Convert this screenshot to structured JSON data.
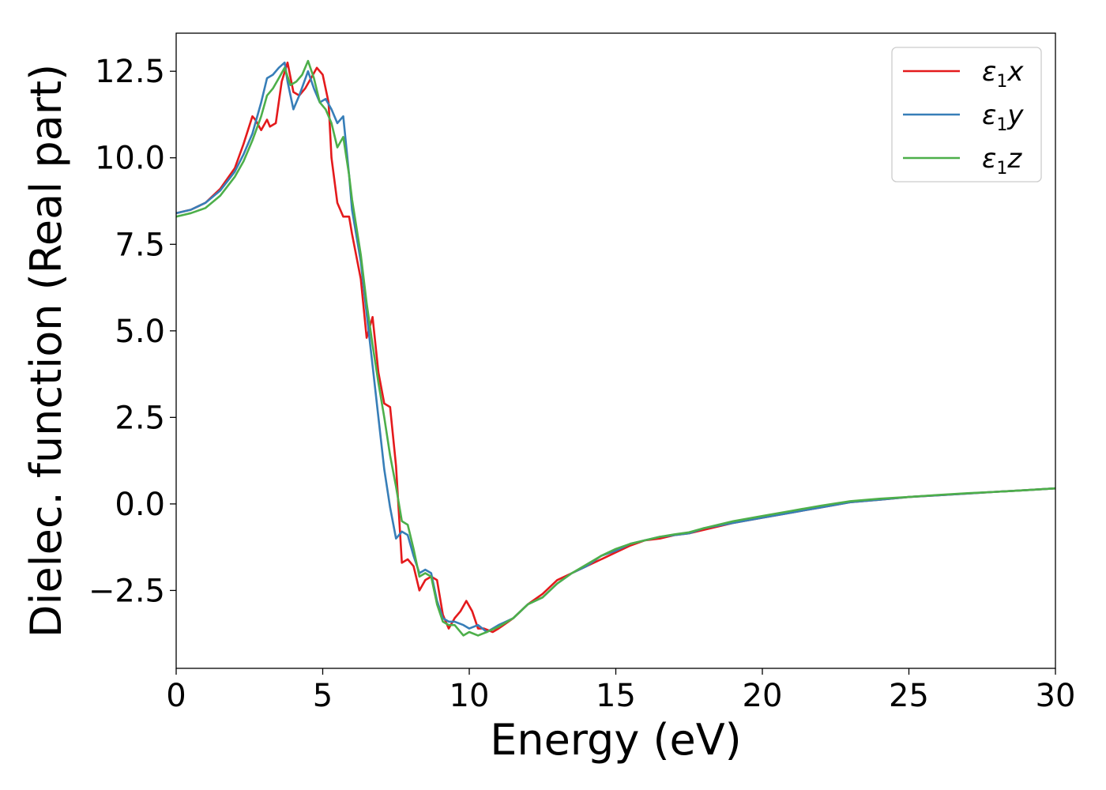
{
  "chart_data": {
    "type": "line",
    "xlabel": "Energy (eV)",
    "ylabel": "Dielec. function (Real part)",
    "xlim": [
      0,
      30
    ],
    "ylim": [
      -4.75,
      13.6
    ],
    "xticks": [
      0,
      5,
      10,
      15,
      20,
      25,
      30
    ],
    "xtick_labels": [
      "0",
      "5",
      "10",
      "15",
      "20",
      "25",
      "30"
    ],
    "yticks": [
      -2.5,
      0.0,
      2.5,
      5.0,
      7.5,
      10.0,
      12.5
    ],
    "ytick_labels": [
      "−2.5",
      "0.0",
      "2.5",
      "5.0",
      "7.5",
      "10.0",
      "12.5"
    ],
    "grid": false,
    "legend_position": "top-right",
    "series": [
      {
        "name": "ε₁x",
        "legend_main": "ε",
        "legend_sub": "1",
        "legend_tail": "x",
        "color": "#e41a1c",
        "x": [
          0,
          0.5,
          1.0,
          1.5,
          2.0,
          2.3,
          2.6,
          2.7,
          2.9,
          3.1,
          3.2,
          3.4,
          3.6,
          3.8,
          4.0,
          4.2,
          4.4,
          4.6,
          4.8,
          5.0,
          5.2,
          5.3,
          5.5,
          5.7,
          5.9,
          6.0,
          6.3,
          6.5,
          6.7,
          6.9,
          7.1,
          7.3,
          7.5,
          7.7,
          7.9,
          8.1,
          8.3,
          8.5,
          8.7,
          8.9,
          9.1,
          9.3,
          9.5,
          9.7,
          9.9,
          10.1,
          10.3,
          10.5,
          10.8,
          11.0,
          11.5,
          12.0,
          12.5,
          13.0,
          13.5,
          14.0,
          14.5,
          15.0,
          15.5,
          16.0,
          16.5,
          17.0,
          17.5,
          18.0,
          19.0,
          20.0,
          21.0,
          22.0,
          23.0,
          24.0,
          25.0,
          26.0,
          27.0,
          28.0,
          29.0,
          30.0
        ],
        "y": [
          8.4,
          8.5,
          8.7,
          9.1,
          9.7,
          10.4,
          11.2,
          11.1,
          10.8,
          11.1,
          10.9,
          11.0,
          12.2,
          12.75,
          11.9,
          11.8,
          12.0,
          12.3,
          12.6,
          12.4,
          11.6,
          10.0,
          8.7,
          8.3,
          8.3,
          7.8,
          6.5,
          4.8,
          5.4,
          3.8,
          2.9,
          2.8,
          1.1,
          -1.7,
          -1.6,
          -1.8,
          -2.5,
          -2.2,
          -2.1,
          -2.2,
          -3.2,
          -3.6,
          -3.3,
          -3.1,
          -2.8,
          -3.1,
          -3.6,
          -3.6,
          -3.7,
          -3.6,
          -3.3,
          -2.9,
          -2.6,
          -2.2,
          -2.0,
          -1.8,
          -1.6,
          -1.4,
          -1.2,
          -1.05,
          -1.0,
          -0.9,
          -0.85,
          -0.75,
          -0.55,
          -0.4,
          -0.25,
          -0.1,
          0.05,
          0.12,
          0.2,
          0.25,
          0.3,
          0.35,
          0.4,
          0.45
        ]
      },
      {
        "name": "ε₁y",
        "legend_main": "ε",
        "legend_sub": "1",
        "legend_tail": "y",
        "color": "#377eb8",
        "x": [
          0,
          0.5,
          1.0,
          1.5,
          2.0,
          2.3,
          2.6,
          2.9,
          3.1,
          3.3,
          3.5,
          3.7,
          3.8,
          4.0,
          4.2,
          4.5,
          4.7,
          4.9,
          5.1,
          5.3,
          5.5,
          5.7,
          5.9,
          6.0,
          6.3,
          6.5,
          6.7,
          6.9,
          7.1,
          7.3,
          7.5,
          7.7,
          7.9,
          8.1,
          8.3,
          8.5,
          8.7,
          8.9,
          9.1,
          9.3,
          9.5,
          9.8,
          10.0,
          10.3,
          10.6,
          11.0,
          11.5,
          12.0,
          12.5,
          13.0,
          13.5,
          14.0,
          14.5,
          15.0,
          15.5,
          16.0,
          16.5,
          17.0,
          17.5,
          18.0,
          19.0,
          20.0,
          21.0,
          22.0,
          23.0,
          24.0,
          25.0,
          26.0,
          27.0,
          28.0,
          29.0,
          30.0
        ],
        "y": [
          8.4,
          8.5,
          8.7,
          9.05,
          9.6,
          10.1,
          10.7,
          11.6,
          12.3,
          12.4,
          12.6,
          12.75,
          12.2,
          11.4,
          11.8,
          12.5,
          12.0,
          11.6,
          11.7,
          11.4,
          11.0,
          11.2,
          9.5,
          8.5,
          7.0,
          5.5,
          4.0,
          2.5,
          1.0,
          -0.1,
          -1.0,
          -0.8,
          -0.9,
          -1.5,
          -2.0,
          -1.9,
          -2.0,
          -2.8,
          -3.3,
          -3.4,
          -3.4,
          -3.5,
          -3.6,
          -3.5,
          -3.7,
          -3.5,
          -3.3,
          -2.9,
          -2.7,
          -2.3,
          -2.0,
          -1.8,
          -1.5,
          -1.35,
          -1.15,
          -1.05,
          -0.95,
          -0.9,
          -0.85,
          -0.7,
          -0.55,
          -0.4,
          -0.25,
          -0.1,
          0.05,
          0.12,
          0.2,
          0.25,
          0.3,
          0.35,
          0.4,
          0.45
        ]
      },
      {
        "name": "ε₁z",
        "legend_main": "ε",
        "legend_sub": "1",
        "legend_tail": "z",
        "color": "#4daf4a",
        "x": [
          0,
          0.5,
          1.0,
          1.5,
          2.0,
          2.3,
          2.6,
          2.9,
          3.1,
          3.3,
          3.5,
          3.7,
          3.9,
          4.1,
          4.3,
          4.5,
          4.7,
          4.9,
          5.1,
          5.3,
          5.5,
          5.7,
          5.9,
          6.0,
          6.3,
          6.5,
          6.7,
          6.9,
          7.1,
          7.3,
          7.5,
          7.7,
          7.9,
          8.1,
          8.3,
          8.5,
          8.7,
          8.9,
          9.1,
          9.3,
          9.5,
          9.8,
          10.0,
          10.3,
          10.6,
          11.0,
          11.5,
          12.0,
          12.5,
          13.0,
          13.5,
          14.0,
          14.5,
          15.0,
          15.5,
          16.0,
          16.5,
          17.0,
          17.5,
          18.0,
          19.0,
          20.0,
          21.0,
          22.0,
          23.0,
          24.0,
          25.0,
          26.0,
          27.0,
          28.0,
          29.0,
          30.0
        ],
        "y": [
          8.3,
          8.4,
          8.55,
          8.9,
          9.45,
          9.9,
          10.5,
          11.2,
          11.8,
          12.0,
          12.3,
          12.6,
          12.1,
          12.2,
          12.4,
          12.8,
          12.3,
          11.6,
          11.4,
          11.0,
          10.3,
          10.6,
          9.5,
          8.8,
          7.2,
          5.8,
          4.6,
          3.5,
          2.5,
          1.4,
          0.5,
          -0.5,
          -0.6,
          -1.3,
          -2.1,
          -2.0,
          -2.1,
          -2.9,
          -3.4,
          -3.5,
          -3.5,
          -3.8,
          -3.7,
          -3.8,
          -3.7,
          -3.55,
          -3.3,
          -2.9,
          -2.7,
          -2.3,
          -2.0,
          -1.75,
          -1.5,
          -1.3,
          -1.15,
          -1.05,
          -0.95,
          -0.88,
          -0.82,
          -0.7,
          -0.5,
          -0.35,
          -0.2,
          -0.05,
          0.08,
          0.15,
          0.2,
          0.26,
          0.31,
          0.35,
          0.4,
          0.45
        ]
      }
    ]
  }
}
